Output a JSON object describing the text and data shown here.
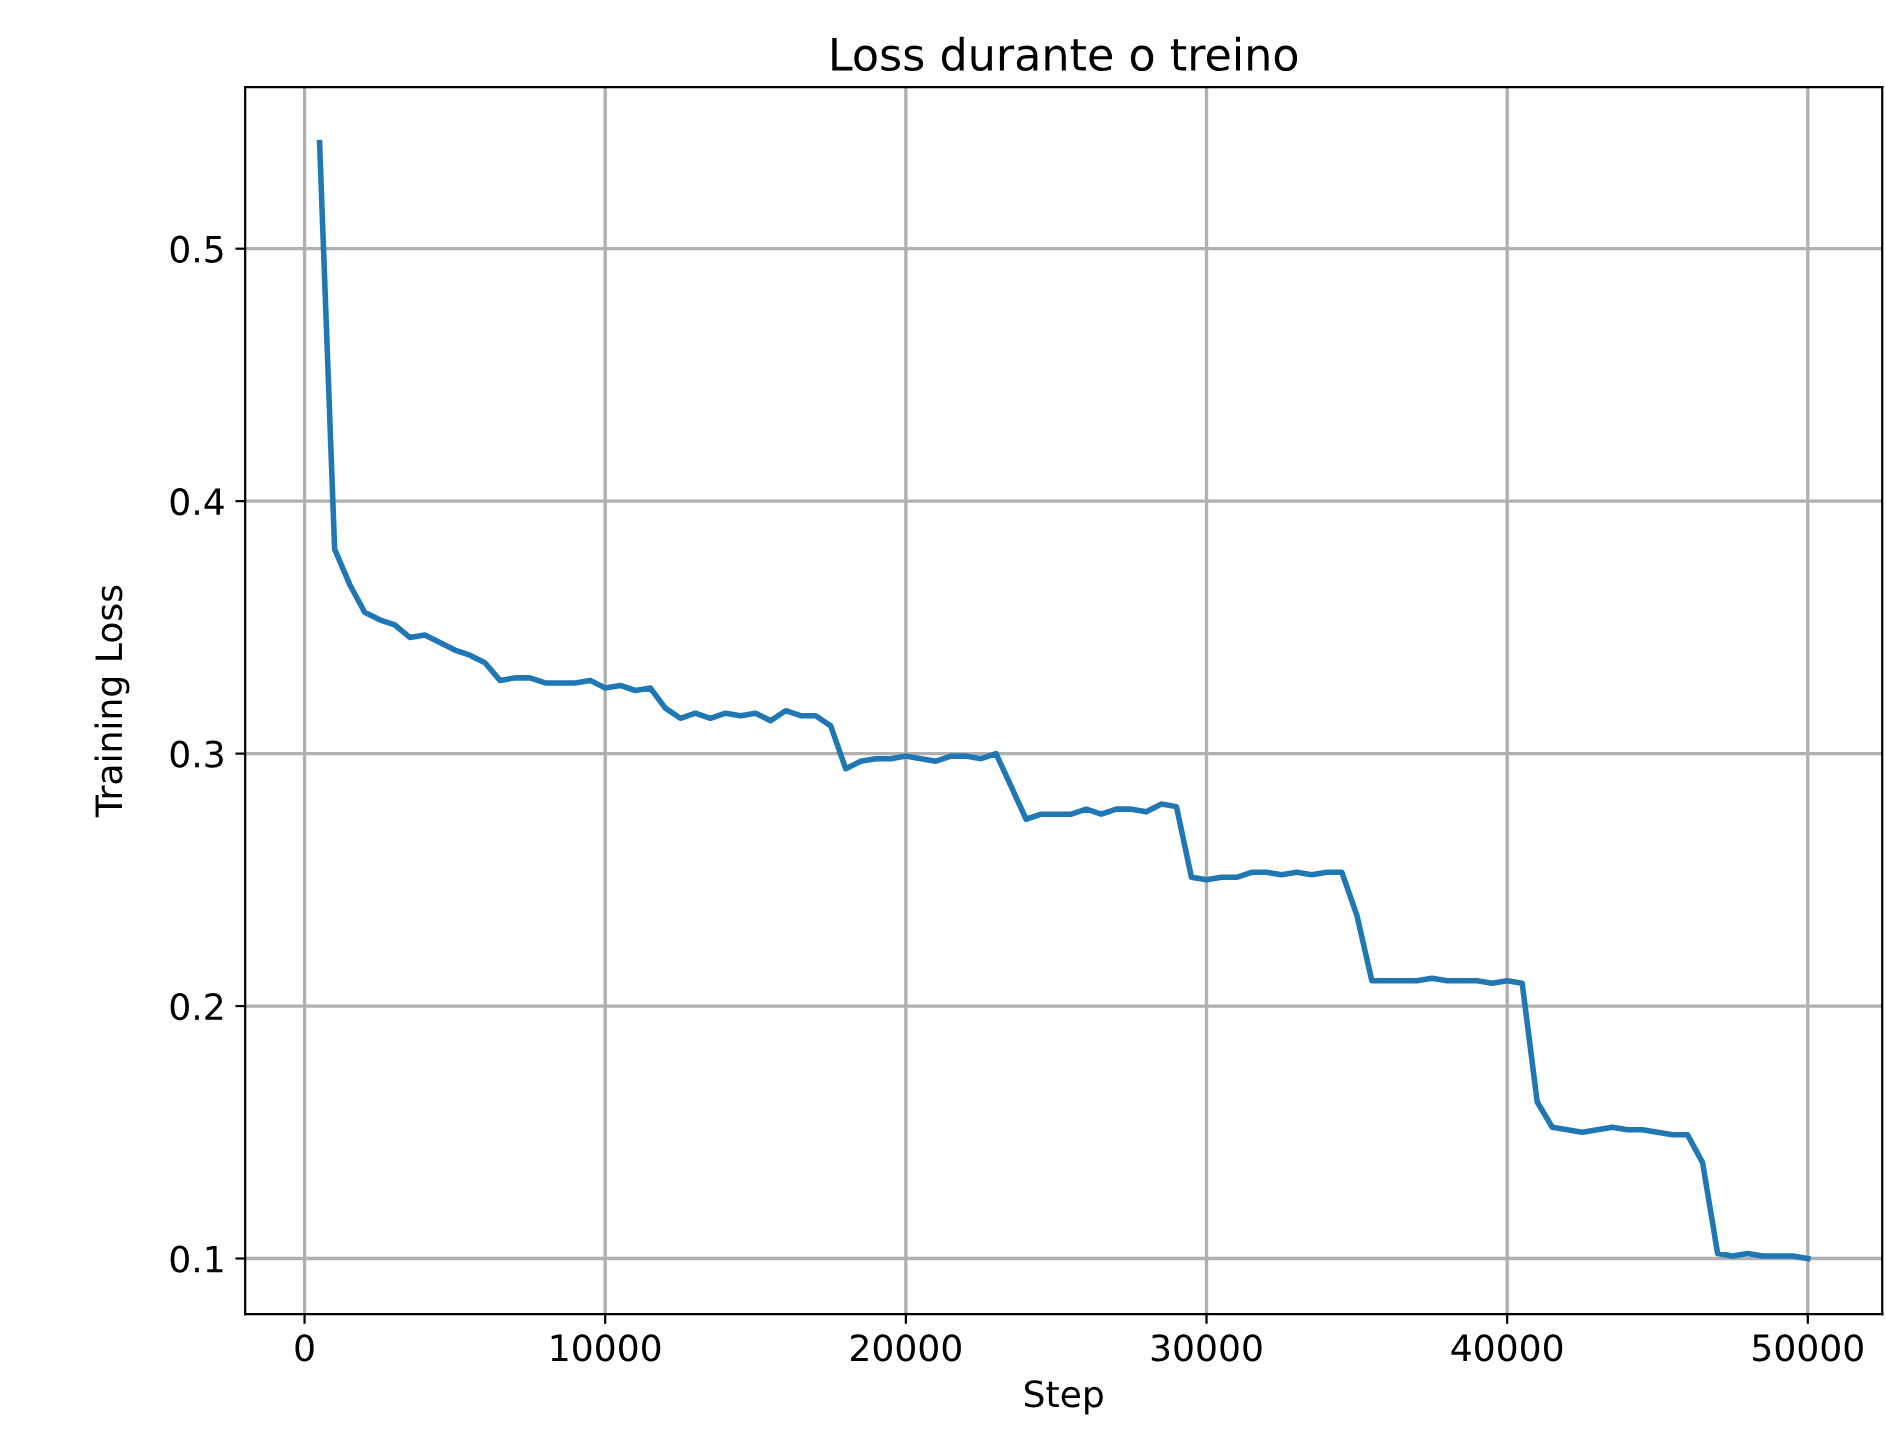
{
  "chart_data": {
    "type": "line",
    "title": "Loss durante o treino",
    "xlabel": "Step",
    "ylabel": "Training Loss",
    "x": [
      500,
      1000,
      1500,
      2000,
      2500,
      3000,
      3500,
      4000,
      4500,
      5000,
      5500,
      6000,
      6500,
      7000,
      7500,
      8000,
      8500,
      9000,
      9500,
      10000,
      10500,
      11000,
      11500,
      12000,
      12500,
      13000,
      13500,
      14000,
      14500,
      15000,
      15500,
      16000,
      16500,
      17000,
      17500,
      18000,
      18500,
      19000,
      19500,
      20000,
      20500,
      21000,
      21500,
      22000,
      22500,
      23000,
      23500,
      24000,
      24500,
      25000,
      25500,
      26000,
      26500,
      27000,
      27500,
      28000,
      28500,
      29000,
      29500,
      30000,
      30500,
      31000,
      31500,
      32000,
      32500,
      33000,
      33500,
      34000,
      34500,
      35000,
      35500,
      36000,
      36500,
      37000,
      37500,
      38000,
      38500,
      39000,
      39500,
      40000,
      40500,
      41000,
      41500,
      42000,
      42500,
      43000,
      43500,
      44000,
      44500,
      45000,
      45500,
      46000,
      46500,
      47000,
      47500,
      48000,
      48500,
      49000,
      49500,
      50000
    ],
    "series": [
      {
        "color": "#1f77b4",
        "values": [
          0.542,
          0.381,
          0.367,
          0.356,
          0.353,
          0.351,
          0.346,
          0.347,
          0.344,
          0.341,
          0.339,
          0.336,
          0.329,
          0.33,
          0.33,
          0.328,
          0.328,
          0.328,
          0.329,
          0.326,
          0.327,
          0.325,
          0.326,
          0.318,
          0.314,
          0.316,
          0.314,
          0.316,
          0.315,
          0.316,
          0.313,
          0.317,
          0.315,
          0.315,
          0.311,
          0.294,
          0.297,
          0.298,
          0.298,
          0.299,
          0.298,
          0.297,
          0.299,
          0.299,
          0.298,
          0.3,
          0.287,
          0.274,
          0.276,
          0.276,
          0.276,
          0.278,
          0.276,
          0.278,
          0.278,
          0.277,
          0.28,
          0.279,
          0.251,
          0.25,
          0.251,
          0.251,
          0.253,
          0.253,
          0.252,
          0.253,
          0.252,
          0.253,
          0.253,
          0.236,
          0.21,
          0.21,
          0.21,
          0.21,
          0.211,
          0.21,
          0.21,
          0.21,
          0.209,
          0.21,
          0.209,
          0.162,
          0.152,
          0.151,
          0.15,
          0.151,
          0.152,
          0.151,
          0.151,
          0.15,
          0.149,
          0.149,
          0.138,
          0.102,
          0.101,
          0.102,
          0.101,
          0.101,
          0.101,
          0.1
        ]
      }
    ],
    "xlim": [
      -1975,
      52475
    ],
    "ylim": [
      0.078,
      0.564
    ],
    "xticks": [
      0,
      10000,
      20000,
      30000,
      40000,
      50000
    ],
    "yticks": [
      0.1,
      0.2,
      0.3,
      0.4,
      0.5
    ],
    "grid": true,
    "marker": "none",
    "line_style": "solid"
  }
}
